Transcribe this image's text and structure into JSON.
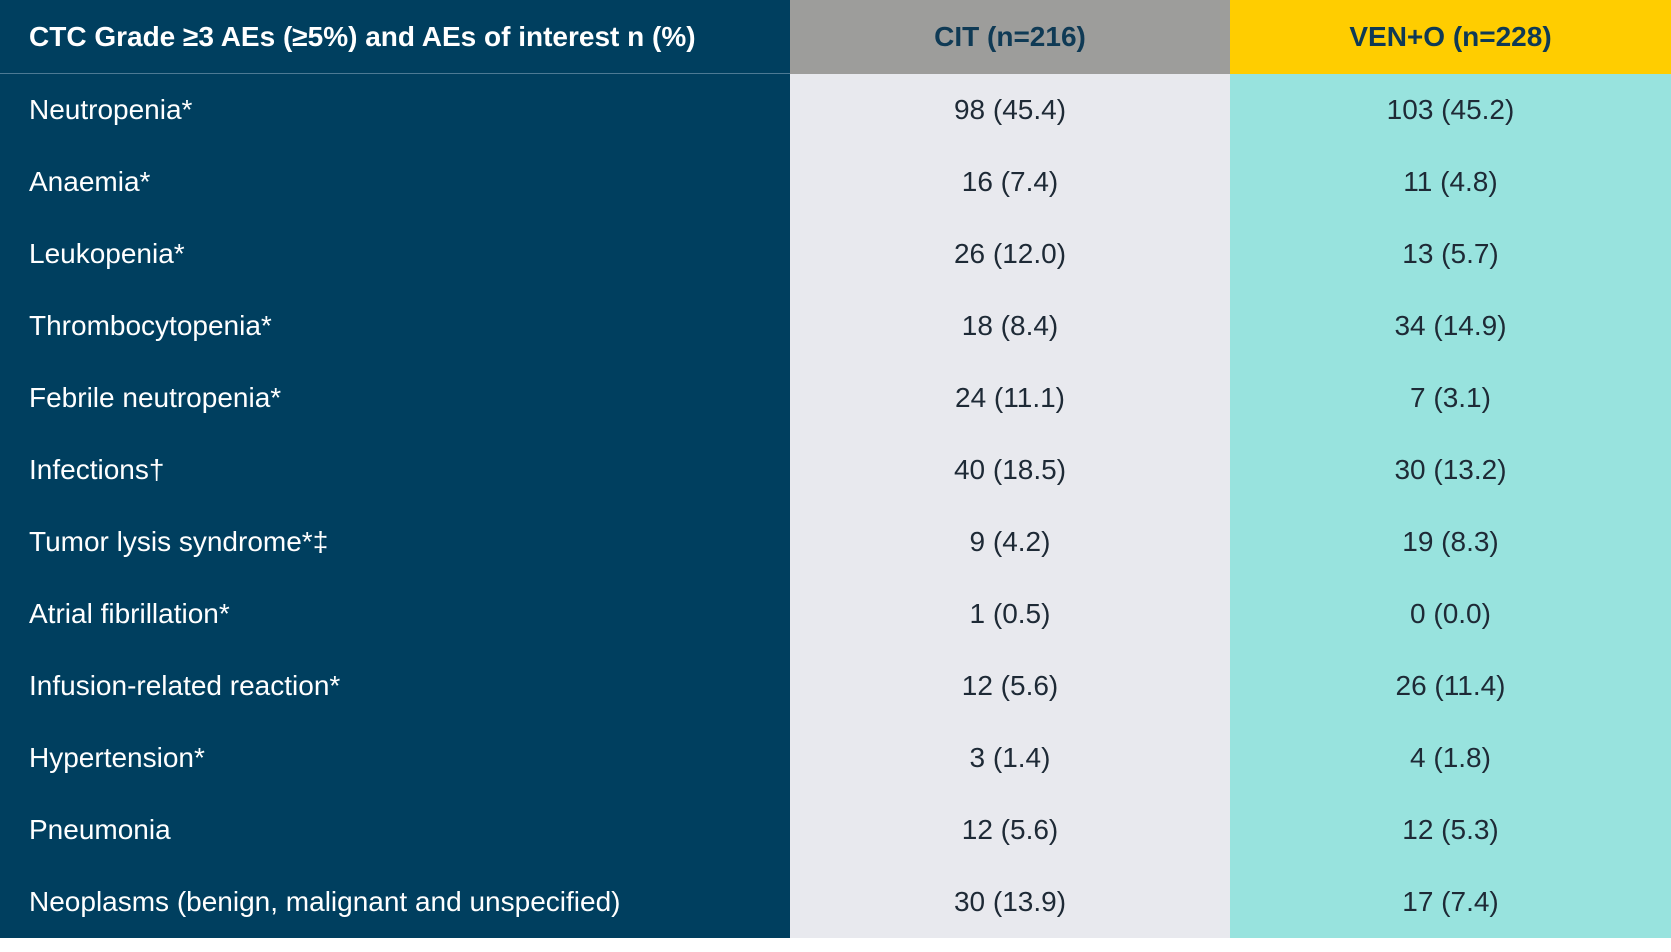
{
  "header": {
    "col1": "CTC Grade ≥3 AEs (≥5%) and AEs of interest n (%)",
    "col2": "CIT (n=216)",
    "col3": "VEN+O (n=228)"
  },
  "colors": {
    "label_column": "#003f5f",
    "cit_column": "#e8e9ee",
    "veno_column": "#98e3de",
    "cit_header": "#9d9d9b",
    "veno_header": "#ffcd00"
  },
  "rows": [
    {
      "label": "Neutropenia*",
      "cit": "98 (45.4)",
      "veno": "103 (45.2)"
    },
    {
      "label": "Anaemia*",
      "cit": "16 (7.4)",
      "veno": "11 (4.8)"
    },
    {
      "label": "Leukopenia*",
      "cit": "26 (12.0)",
      "veno": "13 (5.7)"
    },
    {
      "label": "Thrombocytopenia*",
      "cit": "18 (8.4)",
      "veno": "34 (14.9)"
    },
    {
      "label": "Febrile neutropenia*",
      "cit": "24 (11.1)",
      "veno": "7 (3.1)"
    },
    {
      "label": "Infections†",
      "cit": "40 (18.5)",
      "veno": "30 (13.2)"
    },
    {
      "label": "Tumor lysis syndrome*‡",
      "cit": "9 (4.2)",
      "veno": "19 (8.3)"
    },
    {
      "label": "Atrial fibrillation*",
      "cit": "1 (0.5)",
      "veno": "0 (0.0)"
    },
    {
      "label": "Infusion-related reaction*",
      "cit": "12 (5.6)",
      "veno": "26 (11.4)"
    },
    {
      "label": "Hypertension*",
      "cit": "3 (1.4)",
      "veno": "4 (1.8)"
    },
    {
      "label": "Pneumonia",
      "cit": "12 (5.6)",
      "veno": "12 (5.3)"
    },
    {
      "label": "Neoplasms (benign, malignant and unspecified)",
      "cit": "30 (13.9)",
      "veno": "17 (7.4)"
    }
  ]
}
